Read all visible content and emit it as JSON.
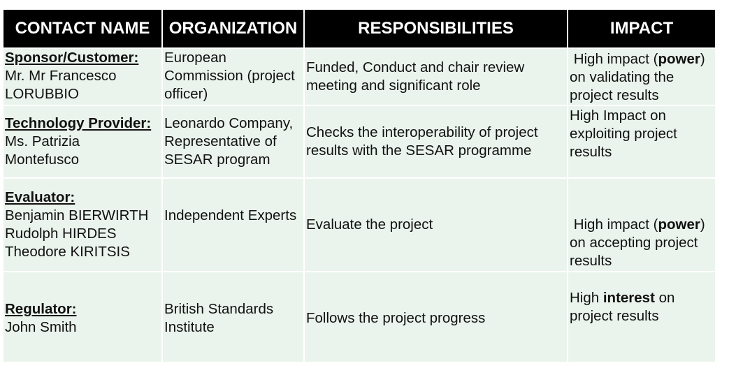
{
  "table": {
    "headers": [
      "CONTACT NAME",
      "ORGANIZATION",
      "RESPONSIBILITIES",
      "IMPACT"
    ],
    "rows": [
      {
        "role": "Sponsor/Customer:",
        "names": [
          "Mr. Mr Francesco",
          "LORUBBIO"
        ],
        "organization": "European Commission (project officer)",
        "responsibilities": "Funded, Conduct and chair review meeting and significant role",
        "impact": {
          "before": " High impact (",
          "bold": "power",
          "after": ") on validating the project results"
        }
      },
      {
        "role": "Technology Provider:",
        "names": [
          "Ms. Patrizia",
          "Montefusco"
        ],
        "organization": "Leonardo Company, Representative of SESAR program",
        "responsibilities": "Checks the interoperability of project results with the SESAR programme",
        "impact": {
          "before": "High Impact on exploiting project results",
          "bold": "",
          "after": ""
        }
      },
      {
        "role": "Evaluator:",
        "names": [
          "Benjamin BIERWIRTH",
          "Rudolph HIRDES",
          "Theodore KIRITSIS"
        ],
        "organization": "Independent Experts",
        "responsibilities": "Evaluate the project",
        "impact": {
          "before": " High impact (",
          "bold": "power",
          "after": ") on accepting project results"
        }
      },
      {
        "role": "Regulator:",
        "names": [
          "John Smith"
        ],
        "organization": "British Standards Institute",
        "responsibilities": "Follows the project progress",
        "impact": {
          "before": "High ",
          "bold": "interest",
          "after": " on project results"
        }
      }
    ]
  }
}
